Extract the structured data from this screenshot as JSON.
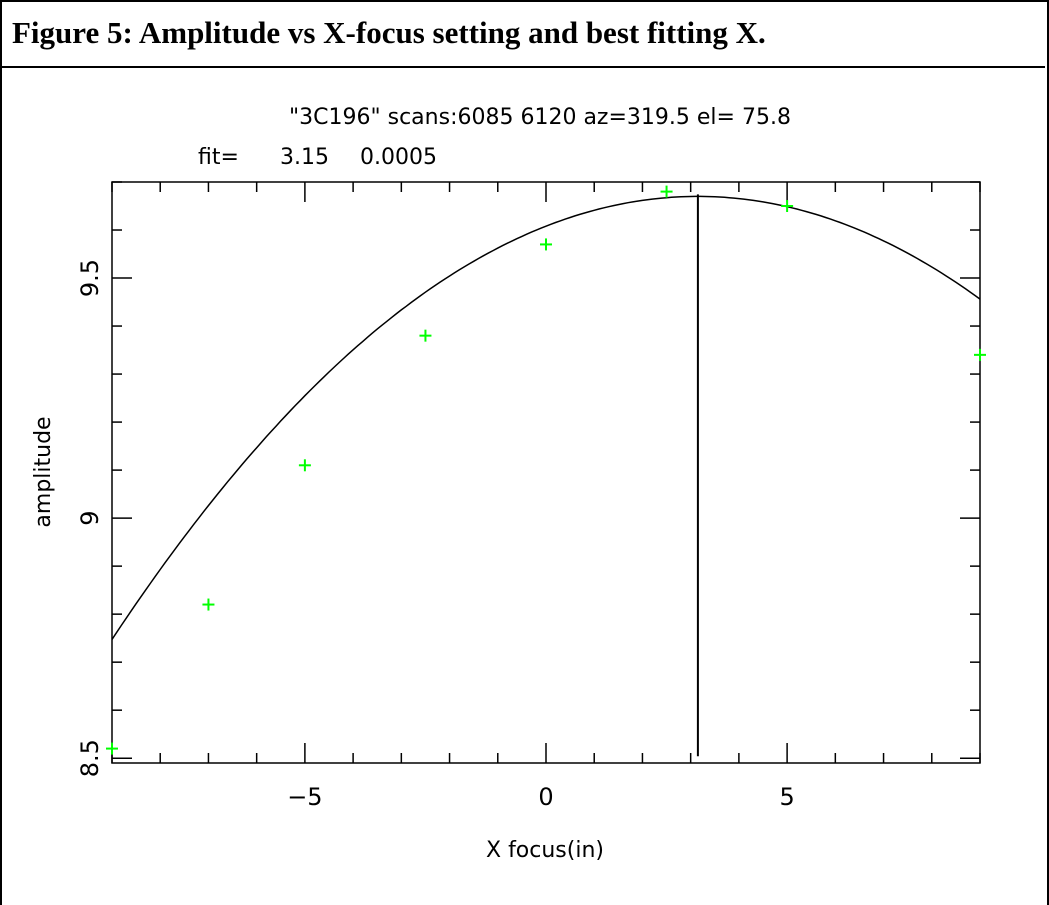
{
  "caption": "Figure 5: Amplitude vs X-focus setting and best fitting X.",
  "chart_data": {
    "type": "scatter",
    "title": "\"3C196\" scans:6085 6120 az=319.5 el= 75.8",
    "subtitle_label": "fit=",
    "subtitle_values": [
      "3.15",
      "0.0005"
    ],
    "xlabel": "X focus(in)",
    "ylabel": "amplitude",
    "xlim": [
      -9,
      9
    ],
    "ylim": [
      8.49,
      9.7
    ],
    "x_ticks": [
      -5,
      0,
      5
    ],
    "x_tick_labels": [
      "−5",
      "0",
      "5"
    ],
    "y_ticks": [
      8.5,
      9,
      9.5
    ],
    "y_tick_labels": [
      "8.5",
      "9",
      "9.5"
    ],
    "points": [
      {
        "x": -9.0,
        "y": 8.52
      },
      {
        "x": -7.0,
        "y": 8.82
      },
      {
        "x": -5.0,
        "y": 9.11
      },
      {
        "x": -2.5,
        "y": 9.38
      },
      {
        "x": 0.0,
        "y": 9.57
      },
      {
        "x": 2.5,
        "y": 9.68
      },
      {
        "x": 5.0,
        "y": 9.65
      },
      {
        "x": 9.0,
        "y": 9.34
      }
    ],
    "fit_curve": {
      "peak_x": 3.15,
      "peak_y": 9.67,
      "coef": 0.00625,
      "color": "#000000"
    },
    "best_fit_x": 3.15,
    "marker_color": "#00ff00",
    "grid": false
  }
}
